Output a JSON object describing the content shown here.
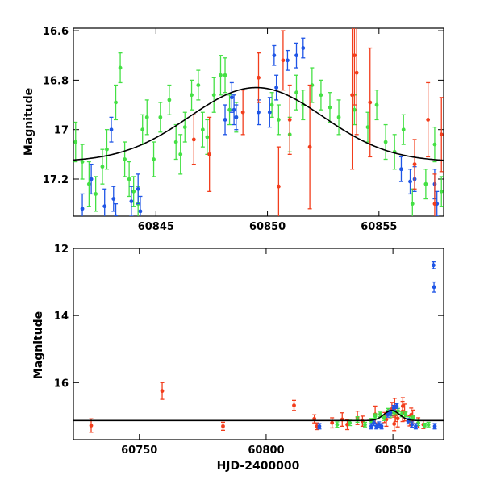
{
  "colors": {
    "green": "#44e044",
    "blue": "#1f55e6",
    "red": "#f23d1c",
    "model": "#000000"
  },
  "chart_data": [
    {
      "type": "scatter",
      "name": "zoom",
      "xlabel": "",
      "ylabel": "Magnitude",
      "xlim": [
        60841.3,
        60857.9
      ],
      "ylim": [
        17.35,
        16.59
      ],
      "y_inverted": true,
      "xticks": [
        60845,
        60850,
        60855
      ],
      "yticks": [
        16.6,
        16.8,
        17,
        17.2
      ],
      "ytick_labels": [
        "16.6",
        "16.8",
        "17",
        "17.2"
      ],
      "model_curve": {
        "base": 17.13,
        "peak": 16.83,
        "t0": 60849.5,
        "width": 3.0
      },
      "series": [
        {
          "color": "green",
          "points": [
            [
              60841.4,
              17.05,
              0.08
            ],
            [
              60841.7,
              17.13,
              0.07
            ],
            [
              60842.0,
              17.22,
              0.09
            ],
            [
              60842.3,
              17.26,
              0.07
            ],
            [
              60842.6,
              17.15,
              0.07
            ],
            [
              60842.8,
              17.08,
              0.08
            ],
            [
              60843.2,
              16.89,
              0.07
            ],
            [
              60843.4,
              16.75,
              0.06
            ],
            [
              60843.6,
              17.12,
              0.07
            ],
            [
              60843.8,
              17.2,
              0.07
            ],
            [
              60844.0,
              17.25,
              0.06
            ],
            [
              60844.2,
              17.3,
              0.07
            ],
            [
              60844.4,
              17.0,
              0.06
            ],
            [
              60844.6,
              16.95,
              0.07
            ],
            [
              60844.9,
              17.12,
              0.07
            ],
            [
              60845.2,
              16.95,
              0.06
            ],
            [
              60845.6,
              16.88,
              0.06
            ],
            [
              60845.9,
              17.05,
              0.07
            ],
            [
              60846.1,
              17.1,
              0.08
            ],
            [
              60846.3,
              16.99,
              0.06
            ],
            [
              60846.6,
              16.86,
              0.06
            ],
            [
              60846.9,
              16.82,
              0.06
            ],
            [
              60847.1,
              17.0,
              0.07
            ],
            [
              60847.3,
              17.03,
              0.07
            ],
            [
              60847.6,
              16.86,
              0.07
            ],
            [
              60847.9,
              16.78,
              0.08
            ],
            [
              60848.1,
              16.78,
              0.07
            ],
            [
              60848.3,
              16.92,
              0.06
            ],
            [
              60848.6,
              16.95,
              0.06
            ],
            [
              60850.2,
              16.9,
              0.05
            ],
            [
              60850.5,
              16.96,
              0.06
            ],
            [
              60851.0,
              17.02,
              0.07
            ],
            [
              60851.3,
              16.85,
              0.07
            ],
            [
              60851.6,
              16.9,
              0.06
            ],
            [
              60852.0,
              16.82,
              0.07
            ],
            [
              60852.4,
              16.86,
              0.06
            ],
            [
              60852.8,
              16.91,
              0.06
            ],
            [
              60853.2,
              16.95,
              0.07
            ],
            [
              60853.9,
              16.92,
              0.06
            ],
            [
              60854.5,
              16.99,
              0.06
            ],
            [
              60854.9,
              16.9,
              0.06
            ],
            [
              60855.3,
              17.05,
              0.07
            ],
            [
              60855.7,
              17.09,
              0.07
            ],
            [
              60856.1,
              17.0,
              0.06
            ],
            [
              60856.5,
              17.3,
              0.06
            ],
            [
              60857.1,
              17.22,
              0.06
            ],
            [
              60857.5,
              17.06,
              0.07
            ],
            [
              60857.8,
              17.25,
              0.06
            ]
          ]
        },
        {
          "color": "blue",
          "points": [
            [
              60841.7,
              17.32,
              0.06
            ],
            [
              60842.1,
              17.2,
              0.06
            ],
            [
              60842.7,
              17.31,
              0.07
            ],
            [
              60843.0,
              17.0,
              0.05
            ],
            [
              60843.1,
              17.28,
              0.05
            ],
            [
              60843.2,
              17.35,
              0.05
            ],
            [
              60843.9,
              17.29,
              0.06
            ],
            [
              60844.2,
              17.24,
              0.06
            ],
            [
              60844.3,
              17.33,
              0.06
            ],
            [
              60848.1,
              16.96,
              0.06
            ],
            [
              60848.4,
              16.87,
              0.06
            ],
            [
              60848.5,
              16.92,
              0.06
            ],
            [
              60848.6,
              16.95,
              0.05
            ],
            [
              60849.6,
              16.93,
              0.05
            ],
            [
              60850.1,
              16.93,
              0.06
            ],
            [
              60850.3,
              16.7,
              0.04
            ],
            [
              60850.4,
              16.83,
              0.05
            ],
            [
              60850.9,
              16.72,
              0.04
            ],
            [
              60851.3,
              16.7,
              0.05
            ],
            [
              60851.6,
              16.67,
              0.04
            ],
            [
              60856.0,
              17.16,
              0.05
            ],
            [
              60856.4,
              17.21,
              0.05
            ],
            [
              60856.6,
              17.2,
              0.05
            ],
            [
              60857.5,
              17.22,
              0.06
            ],
            [
              60857.6,
              17.3,
              0.05
            ]
          ]
        },
        {
          "color": "red",
          "points": [
            [
              60846.7,
              17.04,
              0.1
            ],
            [
              60847.4,
              17.1,
              0.15
            ],
            [
              60848.9,
              16.93,
              0.09
            ],
            [
              60849.6,
              16.79,
              0.1
            ],
            [
              60850.5,
              17.23,
              0.16
            ],
            [
              60850.7,
              16.72,
              0.12
            ],
            [
              60851.0,
              16.96,
              0.14
            ],
            [
              60851.9,
              17.07,
              0.25
            ],
            [
              60853.8,
              16.86,
              0.3
            ],
            [
              60853.9,
              16.7,
              0.2
            ],
            [
              60854.0,
              16.77,
              0.25
            ],
            [
              60854.6,
              16.89,
              0.22
            ],
            [
              60856.6,
              17.14,
              0.1
            ],
            [
              60857.2,
              16.96,
              0.15
            ],
            [
              60857.5,
              17.3,
              0.12
            ],
            [
              60857.8,
              17.02,
              0.15
            ]
          ]
        }
      ]
    },
    {
      "type": "scatter",
      "name": "full",
      "xlabel": "HJD-2400000",
      "ylabel": "Magnitude",
      "xlim": [
        60724,
        60870
      ],
      "ylim": [
        17.7,
        12.0
      ],
      "y_inverted": true,
      "xticks": [
        60750,
        60800,
        60850
      ],
      "yticks": [
        12,
        14,
        16
      ],
      "ytick_labels": [
        "12",
        "14",
        "16"
      ],
      "model_curve": {
        "base": 17.13,
        "peak": 16.83,
        "t0": 60849.5,
        "width": 3.0
      },
      "series": [
        {
          "color": "red",
          "points": [
            [
              60731.0,
              17.28,
              0.2
            ],
            [
              60759.0,
              16.25,
              0.25
            ],
            [
              60783.0,
              17.3,
              0.12
            ],
            [
              60811.0,
              16.68,
              0.15
            ],
            [
              60819.0,
              17.08,
              0.12
            ],
            [
              60820.0,
              17.3,
              0.1
            ],
            [
              60826.0,
              17.2,
              0.15
            ],
            [
              60830.0,
              17.1,
              0.2
            ],
            [
              60832.0,
              17.25,
              0.15
            ],
            [
              60836.0,
              17.05,
              0.2
            ],
            [
              60838.0,
              17.15,
              0.15
            ],
            [
              60843.0,
              16.95,
              0.25
            ],
            [
              60846.7,
              17.04,
              0.15
            ],
            [
              60847.4,
              17.1,
              0.2
            ],
            [
              60848.9,
              16.93,
              0.15
            ],
            [
              60849.6,
              16.79,
              0.2
            ],
            [
              60850.5,
              17.23,
              0.2
            ],
            [
              60850.7,
              16.72,
              0.25
            ],
            [
              60851.0,
              16.96,
              0.2
            ],
            [
              60851.9,
              17.07,
              0.25
            ],
            [
              60853.8,
              16.86,
              0.3
            ],
            [
              60853.9,
              16.7,
              0.25
            ],
            [
              60854.6,
              16.89,
              0.25
            ],
            [
              60856.6,
              17.14,
              0.15
            ],
            [
              60857.2,
              16.96,
              0.2
            ],
            [
              60857.8,
              17.02,
              0.2
            ],
            [
              60860.0,
              17.2,
              0.15
            ],
            [
              60862.0,
              17.25,
              0.12
            ]
          ]
        },
        {
          "color": "green",
          "points": [
            [
              60828.0,
              17.25,
              0.08
            ],
            [
              60833.0,
              17.2,
              0.08
            ],
            [
              60836.0,
              17.1,
              0.08
            ],
            [
              60839.0,
              17.25,
              0.07
            ],
            [
              60841.5,
              17.15,
              0.08
            ],
            [
              60843.0,
              17.0,
              0.07
            ],
            [
              60845.0,
              16.95,
              0.07
            ],
            [
              60846.5,
              17.05,
              0.08
            ],
            [
              60848.0,
              16.85,
              0.08
            ],
            [
              60849.0,
              16.95,
              0.08
            ],
            [
              60850.5,
              16.9,
              0.07
            ],
            [
              60852.0,
              16.85,
              0.08
            ],
            [
              60853.5,
              16.95,
              0.07
            ],
            [
              60855.0,
              16.95,
              0.07
            ],
            [
              60856.5,
              17.1,
              0.08
            ],
            [
              60858.0,
              17.05,
              0.07
            ],
            [
              60860.0,
              17.2,
              0.08
            ],
            [
              60862.5,
              17.28,
              0.07
            ],
            [
              60864.0,
              17.25,
              0.07
            ]
          ]
        },
        {
          "color": "blue",
          "points": [
            [
              60821.0,
              17.3,
              0.08
            ],
            [
              60841.5,
              17.3,
              0.08
            ],
            [
              60842.5,
              17.2,
              0.08
            ],
            [
              60843.5,
              17.3,
              0.08
            ],
            [
              60844.5,
              17.25,
              0.08
            ],
            [
              60845.5,
              17.3,
              0.08
            ],
            [
              60848.0,
              16.95,
              0.08
            ],
            [
              60849.0,
              16.9,
              0.08
            ],
            [
              60850.3,
              16.75,
              0.07
            ],
            [
              60851.5,
              16.7,
              0.07
            ],
            [
              60856.0,
              17.15,
              0.08
            ],
            [
              60857.5,
              17.25,
              0.08
            ],
            [
              60859.0,
              17.3,
              0.08
            ],
            [
              60866.0,
              12.5,
              0.1
            ],
            [
              60866.2,
              13.15,
              0.15
            ],
            [
              60866.5,
              17.3,
              0.08
            ]
          ]
        }
      ]
    }
  ]
}
